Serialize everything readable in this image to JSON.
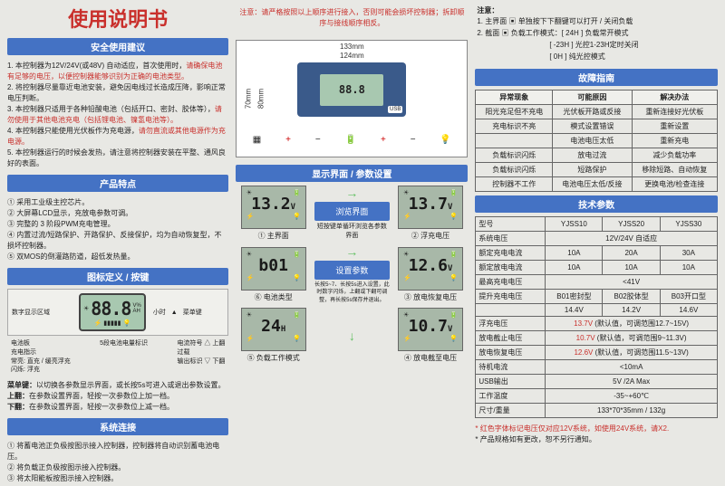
{
  "col1": {
    "title": "使用说明书",
    "safety_hdr": "安全使用建议",
    "safety": [
      {
        "n": "1.",
        "t": "本控制器为12V/24V(或48V) 自动适应，首次使用时，",
        "r": "请确保电池有足够的电压，以便控制器能够识别为正确的电池类型。"
      },
      {
        "n": "2.",
        "t": "将控制器尽量靠近电池安装，避免因电线过长造成压降，影响正常电压判断。"
      },
      {
        "n": "3.",
        "t": "本控制器只适用于各种铅酸电池（包括开口、密封、胶体等），",
        "r": "请勿使用于其他电池充电（包括锂电池、镍氢电池等）。"
      },
      {
        "n": "4.",
        "t": "本控制器只能使用光伏板作为充电源，",
        "r": "请勿直流或其他电源作为充电源。"
      },
      {
        "n": "5.",
        "t": "本控制器运行的时候会发热，请注意将控制器安装在平整、通风良好的表面。"
      }
    ],
    "features_hdr": "产品特点",
    "features": [
      "① 采用工业级主控芯片。",
      "② 大屏幕LCD显示，充放电参数可调。",
      "③ 完整的 3 阶段PWM充电管理。",
      "④ 内置过流/短路保护、开路保护、反接保护，均为自动恢复型，不损坏控制器。",
      "⑤ 双MOS的倒灌路防道，超低发热量。"
    ],
    "keys_hdr": "图标定义 / 按键",
    "lcd_labels": {
      "area": "数字显示区域",
      "batt": "电池板",
      "chg": "充电指示",
      "chg2": "常亮: 直充 / 缓亮浮充",
      "chg3": "闪烁: 浮充",
      "seg": "88.8",
      "unit": "V%\\nAH",
      "bars": "▮▮▮▮▮",
      "level5": "5段电池电量标识",
      "hour": "小时",
      "curr": "电流符号",
      "ovr": "过载",
      "menu_u": "菜单键",
      "up": "上翻",
      "out": "输出标识",
      "dn": "下翻"
    },
    "key_desc": [
      "菜单键：以切换各参数显示界面，或长按5s可进入或退出参数设置。",
      "上翻：在参数设置界面，轻按一次参数位上加一档。",
      "下翻：在参数设置界面，轻按一次参数位上减一档。"
    ],
    "conn_hdr": "系统连接",
    "conn": [
      "① 将蓄电池正负极按图示接入控制器，控制器将自动识别蓄电池电压。",
      "② 将负载正负极按图示接入控制器。",
      "③ 将太阳能板按图示接入控制器。"
    ]
  },
  "col2": {
    "warning": "注意：请严格按照以上顺序进行接入，否则可能会损坏控制器；拆卸顺序与接线顺序相反。",
    "dims": {
      "w133": "133mm",
      "w124": "124mm",
      "h70": "70mm",
      "h80": "80mm"
    },
    "ctrl_screen": "88.8",
    "ctrl_usb": "USB",
    "display_hdr": "显示界面 / 参数设置",
    "screens": [
      {
        "val": "13.2",
        "unit": "V",
        "cap": "① 主界面"
      },
      {
        "val": "",
        "cap": "浏览界面",
        "center": true
      },
      {
        "val": "13.7",
        "unit": "V",
        "cap": "② 浮充电压"
      },
      {
        "val": "b01",
        "cap": "⑥ 电池类型"
      },
      {
        "val": "",
        "cap": "设置参数",
        "center": true
      },
      {
        "val": "12.6",
        "unit": "V",
        "cap": "③ 放电恢复电压"
      },
      {
        "val": "24",
        "unit": "H",
        "cap": "⑤ 负载工作模式"
      },
      {
        "val": "",
        "cap": ""
      },
      {
        "val": "10.7",
        "unit": "V",
        "cap": "④ 放电截至电压"
      }
    ],
    "center_txt1": "短按键单循环浏览各参数界面",
    "center_txt2": "长按5~7、长按5s进入设置，此时数字闪烁，上翻或下翻可调整，再长按5s保存并退出。"
  },
  "col3": {
    "notes_hdr": "注意：",
    "notes": [
      "1. 主界面 ▣ 单独按下下翻键可以打开 / 关闭负载",
      "2. 截面 ▣ 负载工作模式：[ 24H ] 负载常开模式",
      "　　　　　　　　　　[ -23H ] 光控1-23H定时关闭",
      "　　　　　　　　　　[ 0H ] 纯光控模式"
    ],
    "fault_hdr": "故障指南",
    "fault_cols": [
      "异常现象",
      "可能原因",
      "解决办法"
    ],
    "fault_rows": [
      [
        "阳光充足但不充电",
        "光伏板开路或反接",
        "重新连接好光伏板"
      ],
      [
        "充电标识不亮",
        "模式设置错误",
        "重新设置"
      ],
      [
        "",
        "电池电压太低",
        "重新充电"
      ],
      [
        "负载标识闪烁",
        "放电过流",
        "减少负载功率"
      ],
      [
        "负载标识闪烁",
        "短路保护",
        "移除短路、自动恢复"
      ],
      [
        "控制器不工作",
        "电池电压太低/反接",
        "更换电池/检查连接"
      ]
    ],
    "spec_hdr": "技术参数",
    "spec_rows": [
      [
        "型号",
        "YJSS10",
        "YJSS20",
        "YJSS30"
      ],
      [
        "系统电压",
        "12V/24V 自适应",
        "",
        ""
      ],
      [
        "额定充电电流",
        "10A",
        "20A",
        "30A"
      ],
      [
        "额定放电电流",
        "10A",
        "10A",
        "10A"
      ],
      [
        "最高充电电压",
        "<41V",
        "",
        ""
      ],
      [
        "提升充电电压",
        "B01密封型",
        "B02胶体型",
        "B03开口型"
      ],
      [
        "",
        "14.4V",
        "14.2V",
        "14.6V"
      ],
      [
        "浮充电压",
        "13.7V (默认值，可调范围12.7~15V)",
        "",
        ""
      ],
      [
        "放电截止电压",
        "10.7V (默认值，可调范围9~11.3V)",
        "",
        ""
      ],
      [
        "放电恢复电压",
        "12.6V (默认值，可调范围11.5~13V)",
        "",
        ""
      ],
      [
        "待机电流",
        "<10mA",
        "",
        ""
      ],
      [
        "USB输出",
        "5V /2A Max",
        "",
        ""
      ],
      [
        "工作温度",
        "-35~+60℃",
        "",
        ""
      ],
      [
        "尺寸/重量",
        "133*70*35mm / 132g",
        "",
        ""
      ]
    ],
    "footer1": "* 红色字体标记电压仅对应12V系统，如使用24V系统，请X2.",
    "footer2": "* 产品规格如有更改，恕不另行通知。"
  }
}
